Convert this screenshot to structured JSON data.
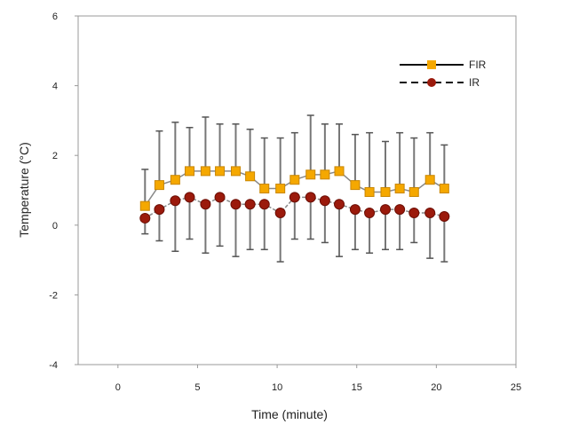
{
  "chart_data": {
    "type": "line",
    "title": "",
    "xlabel": "Time (minute)",
    "ylabel": "Temperature (°C)",
    "xlim": [
      -2.5,
      25
    ],
    "ylim": [
      -4,
      6
    ],
    "xticks": [
      0,
      5,
      10,
      15,
      20,
      25
    ],
    "yticks": [
      -4,
      -2,
      0,
      2,
      4,
      6
    ],
    "grid": false,
    "legend_position": "top-right",
    "x": [
      1.7,
      2.6,
      3.6,
      4.5,
      5.5,
      6.4,
      7.4,
      8.3,
      9.2,
      10.2,
      11.1,
      12.1,
      13.0,
      13.9,
      14.9,
      15.8,
      16.8,
      17.7,
      18.6,
      19.6,
      20.5
    ],
    "series": [
      {
        "name": "FIR",
        "color": "#f5a800",
        "marker": "square",
        "line": "solid",
        "errorbar_direction": "up",
        "values": [
          0.55,
          1.15,
          1.3,
          1.55,
          1.55,
          1.55,
          1.55,
          1.4,
          1.05,
          1.05,
          1.3,
          1.45,
          1.45,
          1.55,
          1.15,
          0.95,
          0.95,
          1.05,
          0.95,
          1.3,
          1.05
        ],
        "errors": [
          1.05,
          1.55,
          1.65,
          1.25,
          1.55,
          1.35,
          1.35,
          1.35,
          1.45,
          1.45,
          1.35,
          1.7,
          1.45,
          1.35,
          1.45,
          1.7,
          1.45,
          1.6,
          1.55,
          1.35,
          1.25
        ]
      },
      {
        "name": "IR",
        "color": "#9b1a0c",
        "marker": "circle",
        "line": "dashed",
        "errorbar_direction": "down",
        "values": [
          0.2,
          0.45,
          0.7,
          0.8,
          0.6,
          0.8,
          0.6,
          0.6,
          0.6,
          0.35,
          0.8,
          0.8,
          0.7,
          0.6,
          0.45,
          0.35,
          0.45,
          0.45,
          0.35,
          0.35,
          0.25
        ],
        "errors": [
          0.45,
          0.9,
          1.45,
          1.2,
          1.4,
          1.4,
          1.5,
          1.3,
          1.3,
          1.4,
          1.2,
          1.2,
          1.2,
          1.5,
          1.15,
          1.15,
          1.15,
          1.15,
          0.85,
          1.3,
          1.3
        ]
      }
    ]
  }
}
